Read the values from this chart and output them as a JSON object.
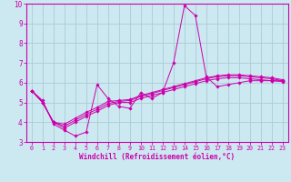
{
  "xlabel": "Windchill (Refroidissement éolien,°C)",
  "xlim": [
    -0.5,
    23.5
  ],
  "ylim": [
    3,
    10
  ],
  "xticks": [
    0,
    1,
    2,
    3,
    4,
    5,
    6,
    7,
    8,
    9,
    10,
    11,
    12,
    13,
    14,
    15,
    16,
    17,
    18,
    19,
    20,
    21,
    22,
    23
  ],
  "yticks": [
    3,
    4,
    5,
    6,
    7,
    8,
    9,
    10
  ],
  "bg_color": "#cce8f0",
  "line_color": "#cc00aa",
  "grid_color": "#aaccd8",
  "lines": [
    {
      "x": [
        0,
        1,
        2,
        3,
        4,
        5,
        6,
        7,
        8,
        9,
        10,
        11,
        12,
        13,
        14,
        15,
        16,
        17,
        18,
        19,
        20,
        21,
        22,
        23
      ],
      "y": [
        5.6,
        5.1,
        3.9,
        3.6,
        3.3,
        3.5,
        5.9,
        5.2,
        4.8,
        4.7,
        5.5,
        5.2,
        5.5,
        7.0,
        9.9,
        9.4,
        6.3,
        5.8,
        5.9,
        6.0,
        6.1,
        6.1,
        6.1,
        6.1
      ]
    },
    {
      "x": [
        0,
        1,
        2,
        3,
        4,
        5,
        6,
        7,
        8,
        9,
        10,
        11,
        12,
        13,
        14,
        15,
        16,
        17,
        18,
        19,
        20,
        21,
        22,
        23
      ],
      "y": [
        5.6,
        5.0,
        4.0,
        3.7,
        4.0,
        4.3,
        4.55,
        4.85,
        5.0,
        5.0,
        5.2,
        5.35,
        5.5,
        5.65,
        5.8,
        5.95,
        6.1,
        6.2,
        6.25,
        6.25,
        6.2,
        6.15,
        6.1,
        6.05
      ]
    },
    {
      "x": [
        0,
        1,
        2,
        3,
        4,
        5,
        6,
        7,
        8,
        9,
        10,
        11,
        12,
        13,
        14,
        15,
        16,
        17,
        18,
        19,
        20,
        21,
        22,
        23
      ],
      "y": [
        5.6,
        5.0,
        4.0,
        3.8,
        4.1,
        4.4,
        4.65,
        4.95,
        5.05,
        5.1,
        5.3,
        5.45,
        5.6,
        5.75,
        5.9,
        6.05,
        6.2,
        6.3,
        6.35,
        6.35,
        6.3,
        6.25,
        6.2,
        6.1
      ]
    },
    {
      "x": [
        0,
        1,
        2,
        3,
        4,
        5,
        6,
        7,
        8,
        9,
        10,
        11,
        12,
        13,
        14,
        15,
        16,
        17,
        18,
        19,
        20,
        21,
        22,
        23
      ],
      "y": [
        5.6,
        5.0,
        4.0,
        3.9,
        4.2,
        4.5,
        4.75,
        5.05,
        5.1,
        5.15,
        5.35,
        5.5,
        5.65,
        5.8,
        5.95,
        6.1,
        6.25,
        6.35,
        6.4,
        6.4,
        6.35,
        6.3,
        6.25,
        6.15
      ]
    }
  ]
}
